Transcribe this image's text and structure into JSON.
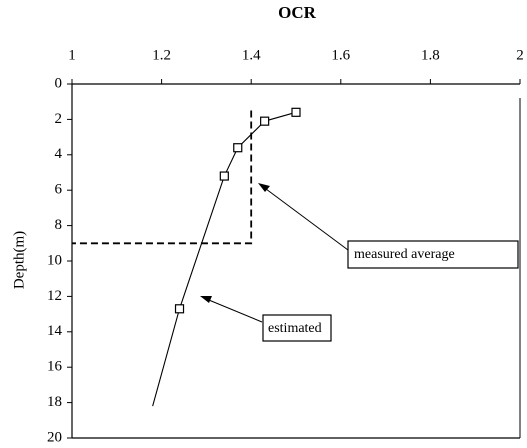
{
  "chart_data": {
    "type": "line",
    "title": "OCR",
    "ylabel": "Depth(m)",
    "xaxis_position": "top",
    "y_inverted": true,
    "xlim": [
      1,
      2
    ],
    "xticks": [
      1,
      1.2,
      1.4,
      1.6,
      1.8,
      2
    ],
    "ylim": [
      0,
      20
    ],
    "yticks": [
      0,
      2,
      4,
      6,
      8,
      10,
      12,
      14,
      16,
      18,
      20
    ],
    "series": [
      {
        "x": [
          1.5,
          1.43,
          1.37,
          1.34,
          1.24,
          1.18
        ],
        "values": [
          1.6,
          2.1,
          3.6,
          5.2,
          12.7,
          18.2
        ],
        "color": "#000000",
        "line": "solid",
        "marker": "none"
      },
      {
        "x": [
          1.5,
          1.43,
          1.37,
          1.34,
          1.24
        ],
        "values": [
          1.6,
          2.1,
          3.6,
          5.2,
          12.7
        ],
        "color": "#000000",
        "line": "none",
        "marker": "square"
      },
      {
        "x": [
          1.4,
          1.4,
          1
        ],
        "values": [
          1.5,
          9,
          9
        ],
        "color": "#000000",
        "line": "dashed",
        "marker": "none"
      }
    ],
    "annotations": [
      "measured average",
      "estimated"
    ]
  }
}
